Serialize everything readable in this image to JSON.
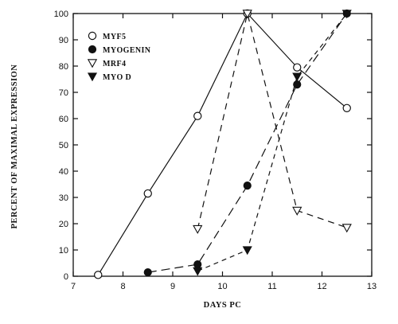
{
  "chart_data": {
    "type": "line",
    "xlabel": "DAYS PC",
    "ylabel": "PERCENT OF MAXIMAL EXPRESSION",
    "xlim": [
      7,
      13
    ],
    "ylim": [
      0,
      100
    ],
    "xticks": [
      "7",
      "8",
      "9",
      "10",
      "11",
      "12",
      "13"
    ],
    "yticks": [
      "0",
      "10",
      "20",
      "30",
      "40",
      "50",
      "60",
      "70",
      "80",
      "90",
      "100"
    ],
    "grid": false,
    "legend_position": "top-left",
    "series": [
      {
        "name": "MYF5",
        "marker": "open-circle",
        "line": "solid",
        "points": [
          [
            7.5,
            0.5
          ],
          [
            8.5,
            31.5
          ],
          [
            9.5,
            61
          ],
          [
            10.5,
            100
          ],
          [
            11.5,
            79.5
          ],
          [
            12.5,
            64
          ]
        ]
      },
      {
        "name": "MYOGENIN",
        "marker": "filled-circle",
        "line": "long-dash",
        "points": [
          [
            8.5,
            1.5
          ],
          [
            9.5,
            4.5
          ],
          [
            10.5,
            34.5
          ],
          [
            11.5,
            73
          ],
          [
            12.5,
            100
          ]
        ]
      },
      {
        "name": "MRF4",
        "marker": "open-triangle-down",
        "line": "dash",
        "points": [
          [
            9.5,
            18
          ],
          [
            10.5,
            100
          ],
          [
            11.5,
            25
          ],
          [
            12.5,
            18.5
          ]
        ]
      },
      {
        "name": "MYO D",
        "marker": "filled-triangle-down",
        "line": "short-dash",
        "points": [
          [
            9.5,
            2
          ],
          [
            10.5,
            10
          ],
          [
            11.5,
            76
          ],
          [
            12.5,
            100
          ]
        ]
      }
    ]
  }
}
